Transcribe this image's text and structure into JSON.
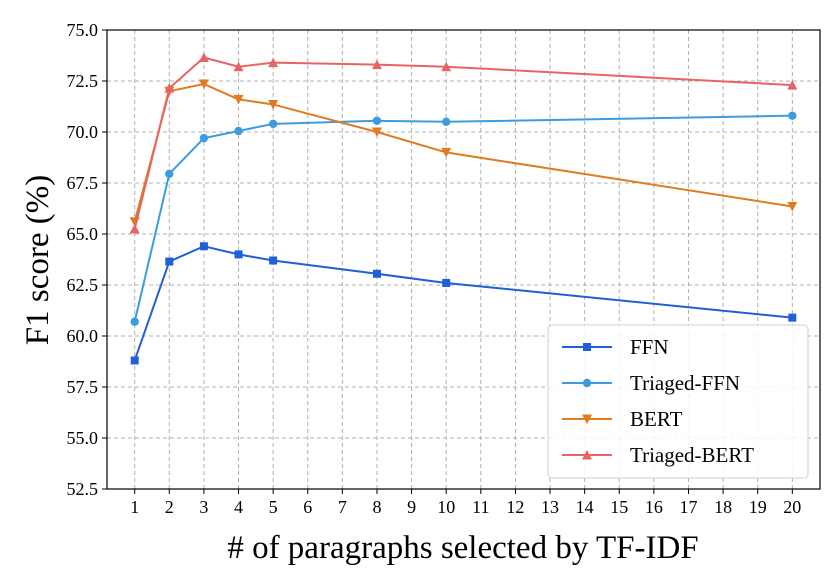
{
  "chart_data": {
    "type": "line",
    "xlabel": "# of paragraphs selected by TF-IDF",
    "ylabel": "F1 score (%)",
    "xticks": [
      1,
      2,
      3,
      4,
      5,
      6,
      7,
      8,
      9,
      10,
      11,
      12,
      13,
      14,
      15,
      16,
      17,
      18,
      19,
      20
    ],
    "yticks": [
      "52.5",
      "55.0",
      "57.5",
      "60.0",
      "62.5",
      "65.0",
      "67.5",
      "70.0",
      "72.5",
      "75.0"
    ],
    "xlim": [
      0.2,
      20.8
    ],
    "ylim": [
      52.5,
      75.0
    ],
    "grid": true,
    "legend_position": "lower-right",
    "x": [
      1,
      2,
      3,
      4,
      5,
      8,
      10,
      20
    ],
    "series": [
      {
        "name": "FFN",
        "color": "#1f5fd8",
        "marker": "square",
        "values": [
          58.8,
          63.65,
          64.4,
          64.0,
          63.7,
          63.05,
          62.6,
          60.9
        ]
      },
      {
        "name": "Triaged-FFN",
        "color": "#3d9be0",
        "marker": "circle",
        "values": [
          60.7,
          67.95,
          69.7,
          70.05,
          70.4,
          70.55,
          70.5,
          70.8
        ]
      },
      {
        "name": "BERT",
        "color": "#e07b20",
        "marker": "triangle-down",
        "values": [
          65.6,
          72.0,
          72.35,
          71.6,
          71.35,
          70.0,
          69.0,
          66.35
        ]
      },
      {
        "name": "Triaged-BERT",
        "color": "#e86464",
        "marker": "triangle-up",
        "values": [
          65.25,
          72.15,
          73.65,
          73.2,
          73.4,
          73.3,
          73.2,
          72.3
        ]
      }
    ]
  }
}
